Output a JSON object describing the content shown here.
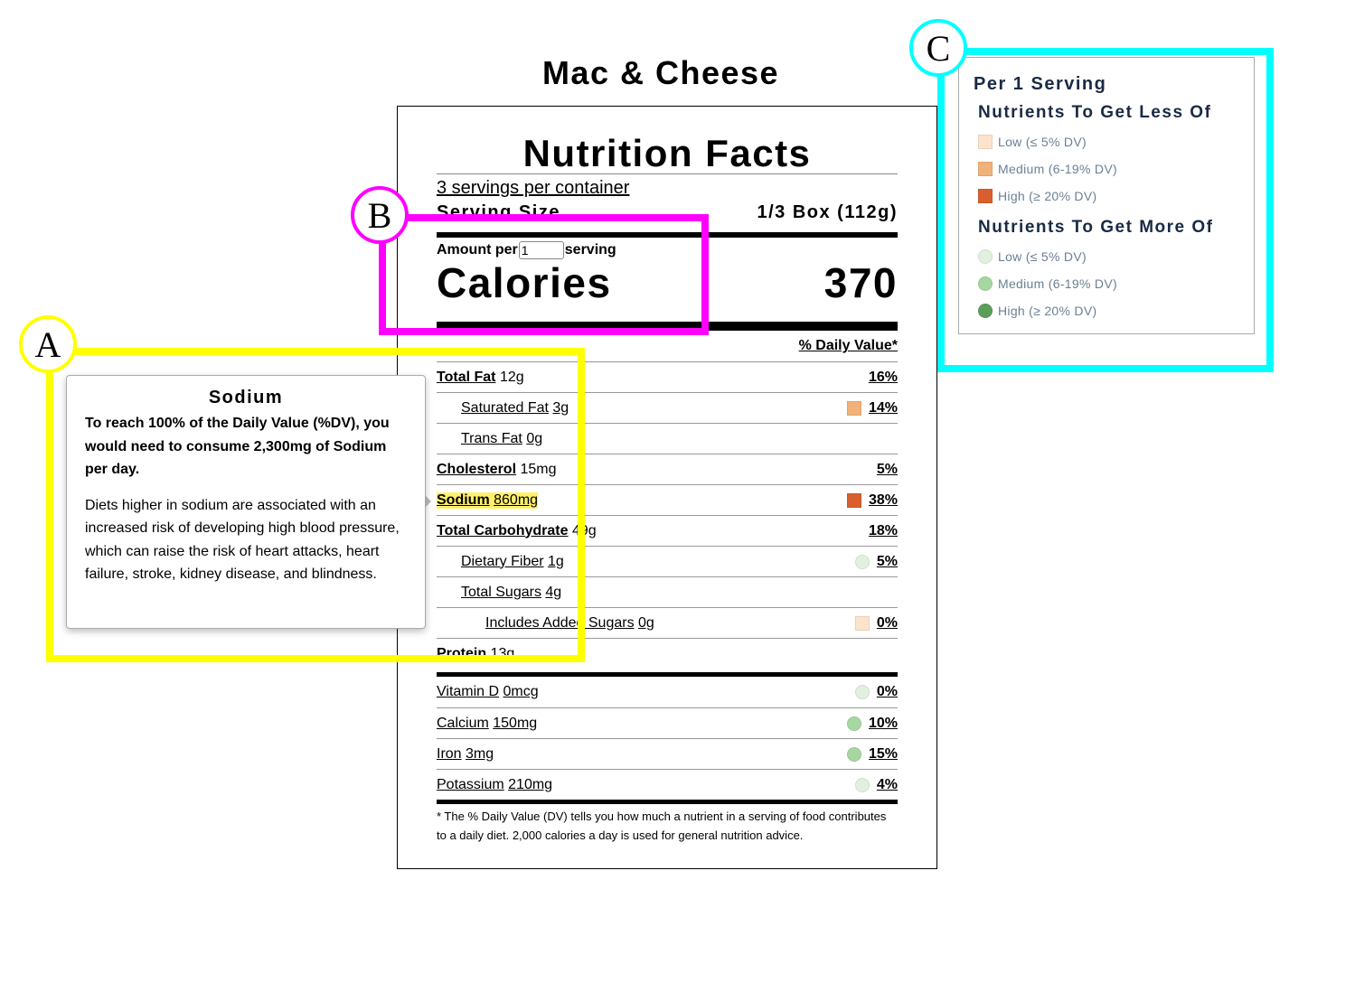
{
  "page_title": "Mac & Cheese",
  "label": {
    "heading": "Nutrition Facts",
    "servings": "3 servings per container",
    "serving_size_label": "Serving Size",
    "serving_size": "1/3 Box (112g)",
    "amount_per": "Amount per",
    "amount_servings": "1",
    "amount_unit": "serving",
    "calories_label": "Calories",
    "calories": "370",
    "dv_header": "% Daily Value*",
    "rows": [
      {
        "name": "Total Fat",
        "amount": "12g",
        "dv": "16%",
        "children": [
          {
            "name": "Saturated Fat",
            "amount": "3g",
            "dv": "14%",
            "marker": "square",
            "marker_color": "#f0b27a"
          },
          {
            "name": "Trans Fat",
            "amount": "0g"
          }
        ]
      },
      {
        "name": "Cholesterol",
        "amount": "15mg",
        "dv": "5%"
      },
      {
        "name": "Sodium",
        "amount": "860mg",
        "dv": "38%",
        "marker": "square",
        "marker_color": "#d9602e",
        "highlighted": true
      },
      {
        "name": "Total Carbohydrate",
        "amount": "49g",
        "dv": "18%",
        "children": [
          {
            "name": "Dietary Fiber",
            "amount": "1g",
            "dv": "5%",
            "marker": "circle",
            "marker_color": "#e2f1df"
          },
          {
            "name": "Total Sugars",
            "amount": "4g",
            "children": [
              {
                "name": "Includes Added Sugars",
                "amount": "0g",
                "dv": "0%",
                "marker": "square",
                "marker_color": "#fde3cc"
              }
            ]
          }
        ]
      },
      {
        "name": "Protein",
        "amount": "13g"
      }
    ],
    "vitamins": [
      {
        "name": "Vitamin D",
        "amount": "0mcg",
        "dv": "0%",
        "marker": "circle",
        "marker_color": "#e2f1df"
      },
      {
        "name": "Calcium",
        "amount": "150mg",
        "dv": "10%",
        "marker": "circle",
        "marker_color": "#a7d7a0"
      },
      {
        "name": "Iron",
        "amount": "3mg",
        "dv": "15%",
        "marker": "circle",
        "marker_color": "#a7d7a0"
      },
      {
        "name": "Potassium",
        "amount": "210mg",
        "dv": "4%",
        "marker": "circle",
        "marker_color": "#e2f1df"
      }
    ],
    "footnote": "* The % Daily Value (DV) tells you how much a nutrient in a serving of food contributes to a daily diet. 2,000 calories a day is used for general nutrition advice."
  },
  "tooltip": {
    "title": "Sodium",
    "summary": "To reach 100% of the Daily Value (%DV), you would need to consume 2,300mg of Sodium per day.",
    "body": "Diets higher in sodium are associated with an increased risk of developing high blood pressure, which can raise the risk of heart attacks, heart failure, stroke, kidney disease, and blindness."
  },
  "legend": {
    "title": "Per 1 Serving",
    "groups": [
      {
        "heading": "Nutrients To Get Less Of",
        "shape": "square",
        "items": [
          {
            "label": "Low (≤ 5% DV)",
            "color": "#fde3cc"
          },
          {
            "label": "Medium (6-19% DV)",
            "color": "#f0b27a"
          },
          {
            "label": "High (≥ 20% DV)",
            "color": "#d9602e"
          }
        ]
      },
      {
        "heading": "Nutrients To Get More Of",
        "shape": "circle",
        "items": [
          {
            "label": "Low (≤ 5% DV)",
            "color": "#e2f1df"
          },
          {
            "label": "Medium (6-19% DV)",
            "color": "#a7d7a0"
          },
          {
            "label": "High (≥ 20% DV)",
            "color": "#5a9e5a"
          }
        ]
      }
    ]
  },
  "annotations": [
    {
      "label": "A",
      "color": "#ffff00"
    },
    {
      "label": "B",
      "color": "#ff00ff"
    },
    {
      "label": "C",
      "color": "#00ffff"
    }
  ]
}
